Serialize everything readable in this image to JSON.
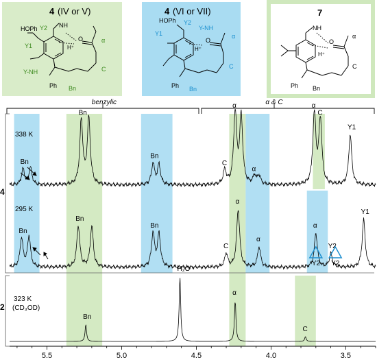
{
  "panels": {
    "left": {
      "number": "4",
      "label": "(IV or V)",
      "bg": "#d9ecc9",
      "accent": "#3d8a1e"
    },
    "middle": {
      "number": "4",
      "label": "(VI or VII)",
      "bg": "#a9dcf2",
      "accent": "#1a8fcf"
    },
    "right": {
      "number": "7",
      "bg": "#ffffff",
      "border": "#cfe8bd"
    }
  },
  "molecule_labels": {
    "left": {
      "hoph": "HOPh",
      "y2": "Y2",
      "y1": "Y1",
      "ynh": "Y-NH",
      "alpha": "α",
      "c": "C",
      "bn": "Bn",
      "ph": "Ph",
      "hplus": "H⁺",
      "o": "O",
      "nh": "NH",
      "n": "N",
      "h": "H",
      "hn": "H–N",
      "hn2": "H"
    },
    "middle": {
      "hoph": "HOPh",
      "y2": "Y2",
      "y1": "Y1",
      "ynh": "Y-NH",
      "alpha": "α",
      "c": "C",
      "bn": "Bn",
      "ph": "Ph",
      "hplus": "H⁺",
      "o": "O",
      "nh": "NH",
      "n": "N",
      "h": "H"
    },
    "right": {
      "alpha": "α",
      "c": "C",
      "bn": "Bn",
      "ph": "Ph",
      "hplus": "H⁺",
      "o": "O",
      "nh": "NH",
      "n": "N",
      "h": "H",
      "nme2": "N"
    }
  },
  "brackets": {
    "benzylic": "benzylic",
    "alpha_c": "α & C"
  },
  "side_labels": {
    "compound4": "4",
    "compound2": "2"
  },
  "colors": {
    "green": "#cfe8bd",
    "blue": "#a9dcf2",
    "triangle": "#1f8fcf",
    "trace": "#000000"
  },
  "chart_data": {
    "type": "line",
    "xlabel": "",
    "x_axis": {
      "reversed": true,
      "xlim": [
        5.75,
        3.3
      ],
      "ticks": [
        "5.5",
        "5.0",
        "4.5",
        "4.0",
        "3.5"
      ]
    },
    "spectra": [
      {
        "name": "338 K",
        "compound": "4",
        "peaks": [
          {
            "ppm": 5.66,
            "height": 0.22,
            "label": "Bn"
          },
          {
            "ppm": 5.61,
            "height": 0.24,
            "label": ""
          },
          {
            "ppm": 5.27,
            "height": 0.9,
            "label": "Bn"
          },
          {
            "ppm": 5.22,
            "height": 0.92,
            "label": ""
          },
          {
            "ppm": 4.79,
            "height": 0.3,
            "label": "Bn"
          },
          {
            "ppm": 4.75,
            "height": 0.28,
            "label": ""
          },
          {
            "ppm": 4.31,
            "height": 0.2,
            "label": "C"
          },
          {
            "ppm": 4.24,
            "height": 1.0,
            "label": "α"
          },
          {
            "ppm": 4.2,
            "height": 0.95,
            "label": ""
          },
          {
            "ppm": 4.11,
            "height": 0.12,
            "label": "α"
          },
          {
            "ppm": 4.08,
            "height": 0.12,
            "label": ""
          },
          {
            "ppm": 3.71,
            "height": 1.0,
            "label": "α"
          },
          {
            "ppm": 3.67,
            "height": 0.9,
            "label": "C"
          },
          {
            "ppm": 3.47,
            "height": 0.7,
            "label": "Y1"
          }
        ]
      },
      {
        "name": "295 K",
        "compound": "4",
        "peaks": [
          {
            "ppm": 5.67,
            "height": 0.42,
            "label": "Bn"
          },
          {
            "ppm": 5.62,
            "height": 0.45,
            "label": ""
          },
          {
            "ppm": 5.29,
            "height": 0.6,
            "label": "Bn"
          },
          {
            "ppm": 5.2,
            "height": 0.6,
            "label": ""
          },
          {
            "ppm": 4.79,
            "height": 0.5,
            "label": "Bn"
          },
          {
            "ppm": 4.75,
            "height": 0.48,
            "label": ""
          },
          {
            "ppm": 4.3,
            "height": 0.2,
            "label": "C"
          },
          {
            "ppm": 4.22,
            "height": 0.85,
            "label": "α"
          },
          {
            "ppm": 4.08,
            "height": 0.3,
            "label": "α"
          },
          {
            "ppm": 3.7,
            "height": 0.5,
            "label": "α"
          },
          {
            "ppm": 3.6,
            "height": 0.2,
            "label": "Y2"
          },
          {
            "ppm": 3.38,
            "height": 0.7,
            "label": "Y1"
          }
        ],
        "markers": [
          {
            "ppm": 3.7,
            "label": "Y2"
          },
          {
            "ppm": 3.57,
            "label": "Y2"
          }
        ]
      },
      {
        "name": "323 K",
        "solvent": "(CD₃OD)",
        "compound": "2",
        "peaks": [
          {
            "ppm": 5.24,
            "height": 0.25,
            "label": "Bn"
          },
          {
            "ppm": 4.61,
            "height": 0.95,
            "label": "H₂O"
          },
          {
            "ppm": 4.24,
            "height": 0.6,
            "label": "α"
          },
          {
            "ppm": 3.77,
            "height": 0.07,
            "label": "C"
          }
        ]
      }
    ],
    "highlight_bands": [
      {
        "from": 5.72,
        "to": 5.55,
        "color": "blue",
        "rows": "4"
      },
      {
        "from": 5.37,
        "to": 5.13,
        "color": "green",
        "rows": "all"
      },
      {
        "from": 4.87,
        "to": 4.66,
        "color": "blue",
        "rows": "4"
      },
      {
        "from": 4.28,
        "to": 4.17,
        "color": "green",
        "rows": "all"
      },
      {
        "from": 4.17,
        "to": 4.01,
        "color": "blue",
        "rows": "4"
      },
      {
        "from": 3.76,
        "to": 3.62,
        "color": "blue",
        "rows": "295 K"
      },
      {
        "from": 3.72,
        "to": 3.64,
        "color": "green",
        "rows": "338 K"
      },
      {
        "from": 3.84,
        "to": 3.7,
        "color": "green",
        "rows": "2"
      }
    ]
  }
}
